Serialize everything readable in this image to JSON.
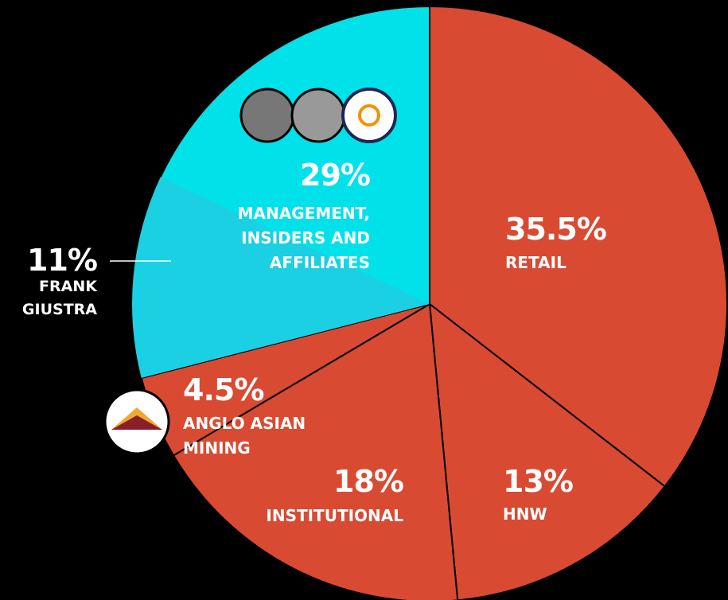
{
  "chart_data": {
    "type": "pie",
    "categories": [
      "RETAIL",
      "HNW",
      "INSTITUTIONAL",
      "ANGLO ASIAN MINING",
      "MANAGEMENT, INSIDERS AND AFFILIATES"
    ],
    "values": [
      35.5,
      13,
      18,
      4.5,
      29
    ],
    "value_labels": [
      "35.5%",
      "13%",
      "18%",
      "4.5%",
      "29%"
    ],
    "colors": [
      "#d94a32",
      "#d94a32",
      "#d94a32",
      "#d94a32",
      "#00e1ea"
    ],
    "highlight": {
      "label": "FRANK GIUSTRA",
      "value": 11,
      "value_label": "11%",
      "color": "#1ad0e2"
    }
  }
}
